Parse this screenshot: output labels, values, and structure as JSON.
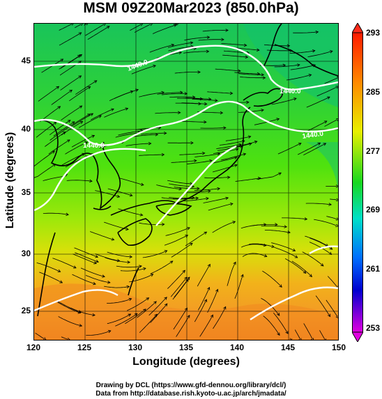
{
  "title": "MSM 09Z20Mar2023 (850.0hPa)",
  "axes": {
    "xlabel": "Longitude (degrees)",
    "ylabel": "Latitude  (degrees)",
    "xticks": [
      "120",
      "125",
      "130",
      "135",
      "140",
      "145",
      "150"
    ],
    "yticks": [
      "45",
      "40",
      "35",
      "30",
      "25"
    ]
  },
  "colorbar": {
    "ticks": [
      "293",
      "285",
      "277",
      "269",
      "261",
      "253"
    ],
    "colors": [
      "#ff0000",
      "#ff8c00",
      "#ffff00",
      "#00dd00",
      "#00e5e5",
      "#0000ff",
      "#dd00dd"
    ]
  },
  "contour_labels": [
    "1440.0",
    "1440.0",
    "1440.0",
    "1440.0"
  ],
  "credits": {
    "line1": "Drawing by DCL (https://www.gfd-dennou.org/library/dcl/)",
    "line2": "Data from http://database.rish.kyoto-u.ac.jp/arch/jmadata/"
  },
  "chart_data": {
    "type": "heatmap",
    "title": "MSM 09Z20Mar2023 (850.0hPa)",
    "xlabel": "Longitude (degrees)",
    "ylabel": "Latitude  (degrees)",
    "xlim": [
      120,
      150
    ],
    "ylim": [
      22.4,
      47.6
    ],
    "colorbar_range": [
      253,
      293
    ],
    "colorbar_ticks": [
      253,
      261,
      269,
      277,
      285,
      293
    ],
    "contour_value": 1440.0,
    "grid": true,
    "overlays": [
      "streamlines",
      "coastlines",
      "geopotential contour"
    ]
  }
}
